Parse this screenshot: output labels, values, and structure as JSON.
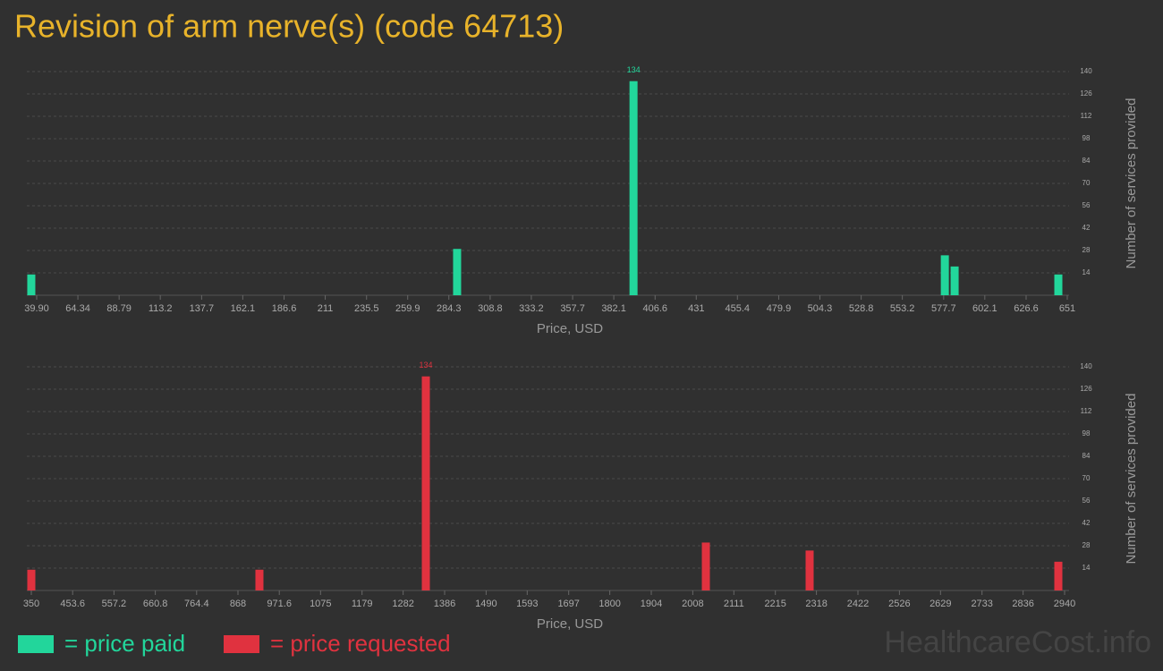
{
  "title": "Revision of arm nerve(s) (code 64713)",
  "watermark": "HealthcareCost.info",
  "chart_data": [
    {
      "type": "bar",
      "x_label": "Price, USD",
      "y_label": "Number of services provided",
      "x": [
        36.7,
        289.2,
        393.8,
        578.4,
        584.2,
        645.7
      ],
      "series": [
        {
          "name": "= price paid",
          "color": "#22d69b",
          "values": [
            13,
            29,
            134,
            25,
            18,
            13
          ],
          "value_labels": [
            null,
            null,
            "134",
            null,
            null,
            null
          ]
        }
      ],
      "xlim": [
        39.9,
        651
      ],
      "xticks": [
        {
          "value": 39.9,
          "label": "39.90"
        },
        64.34,
        88.79,
        113.2,
        137.7,
        162.1,
        186.6,
        211,
        235.5,
        259.9,
        284.3,
        308.8,
        333.2,
        357.7,
        382.1,
        406.6,
        431,
        455.4,
        479.9,
        504.3,
        528.8,
        553.2,
        577.7,
        602.1,
        626.6,
        651
      ],
      "ylim": [
        0,
        140
      ],
      "yticks": [
        14,
        28,
        42,
        56,
        70,
        84,
        98,
        112,
        126,
        140
      ],
      "grid": true
    },
    {
      "type": "bar",
      "x_label": "Price, USD",
      "y_label": "Number of services provided",
      "x": [
        350,
        921.8,
        1338.9,
        2040.8,
        2300.9,
        2924.3
      ],
      "series": [
        {
          "name": "= price requested",
          "color": "#e0323f",
          "values": [
            13,
            13,
            134,
            30,
            25,
            18
          ],
          "value_labels": [
            null,
            null,
            "134",
            null,
            null,
            null
          ]
        }
      ],
      "xlim": [
        350,
        2940
      ],
      "xticks": [
        350,
        453.6,
        557.2,
        660.8,
        764.4,
        868,
        971.6,
        1075,
        1179,
        1282,
        1386,
        1490,
        1593,
        1697,
        1800,
        1904,
        2008,
        2111,
        2215,
        2318,
        2422,
        2526,
        2629,
        2733,
        2836,
        2940
      ],
      "ylim": [
        0,
        140
      ],
      "yticks": [
        14,
        28,
        42,
        56,
        70,
        84,
        98,
        112,
        126,
        140
      ],
      "grid": true
    }
  ]
}
